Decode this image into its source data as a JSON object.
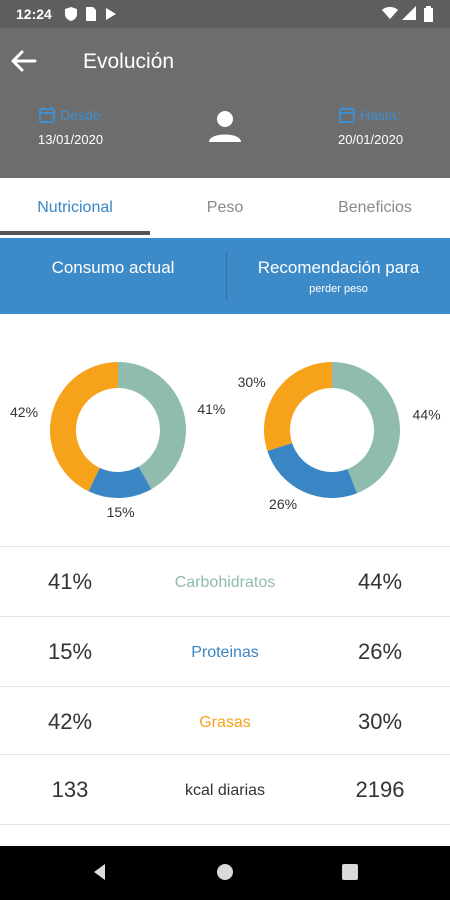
{
  "status_bar": {
    "time": "12:24"
  },
  "header": {
    "title": "Evolución",
    "from": {
      "label": "Desde:",
      "date": "13/01/2020"
    },
    "to": {
      "label": "Hasta:",
      "date": "20/01/2020"
    }
  },
  "tabs": [
    {
      "label": "Nutricional",
      "active": true
    },
    {
      "label": "Peso",
      "active": false
    },
    {
      "label": "Beneficios",
      "active": false
    }
  ],
  "compare": {
    "left_label": "Consumo actual",
    "right_label": "Recomendación para",
    "right_sublabel": "perder peso"
  },
  "colors": {
    "carbohidratos": "#8fbcaf",
    "proteinas": "#3a86c4",
    "grasas": "#f7a21b",
    "header": "#6d6d6d",
    "accent": "#3d8ac8"
  },
  "chart_data": [
    {
      "type": "pie",
      "categories": [
        "Carbohidratos",
        "Proteinas",
        "Grasas"
      ],
      "values": [
        41,
        15,
        42
      ],
      "labels": [
        "41%",
        "15%",
        "42%"
      ]
    },
    {
      "type": "pie",
      "categories": [
        "Carbohidratos",
        "Proteinas",
        "Grasas"
      ],
      "values": [
        44,
        26,
        30
      ],
      "labels": [
        "44%",
        "26%",
        "30%"
      ]
    }
  ],
  "stats": [
    {
      "left": "41%",
      "label": "Carbohidratos",
      "right": "44%",
      "color": "#8fbcaf"
    },
    {
      "left": "15%",
      "label": "Proteinas",
      "right": "26%",
      "color": "#3a86c4"
    },
    {
      "left": "42%",
      "label": "Grasas",
      "right": "30%",
      "color": "#f7a21b"
    },
    {
      "left": "133",
      "label": "kcal diarias",
      "right": "2196",
      "color": "#333333"
    }
  ]
}
